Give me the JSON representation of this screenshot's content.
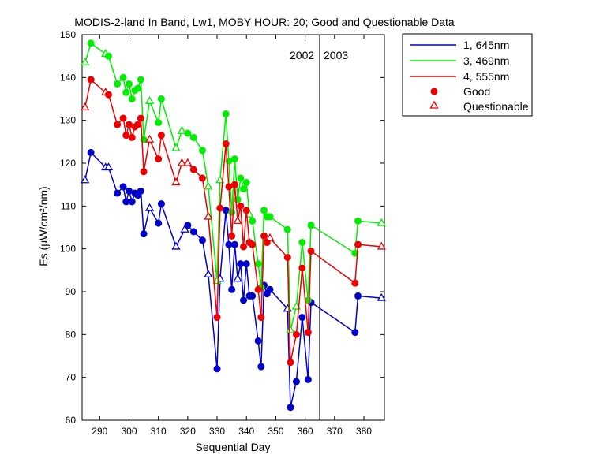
{
  "chart_data": {
    "type": "line",
    "title": "MODIS-2-land In Band,  Lw1, MOBY HOUR: 20;  Good and Questionable Data",
    "xlabel": "Sequential Day",
    "ylabel": "Es (µW/cm²/nm)",
    "xlim": [
      284,
      387
    ],
    "ylim": [
      60,
      150
    ],
    "xticks": [
      290,
      300,
      310,
      320,
      330,
      340,
      350,
      360,
      370,
      380
    ],
    "yticks": [
      60,
      70,
      80,
      90,
      100,
      110,
      120,
      130,
      140,
      150
    ],
    "grid": false,
    "legend_position": "top-right, outside plot",
    "year_divider": {
      "x": 365,
      "left_label": "2002",
      "right_label": "2003"
    },
    "legend": {
      "series_labels": [
        "1, 645nm",
        "3, 469nm",
        "4, 555nm"
      ],
      "good_label": "Good",
      "questionable_label": "Questionable"
    },
    "series": [
      {
        "name": "1, 645nm",
        "color": "#0000cc",
        "points": [
          [
            285,
            116.0,
            "q"
          ],
          [
            287,
            122.5,
            "g"
          ],
          [
            292,
            119.0,
            "q"
          ],
          [
            293,
            119.0,
            "q"
          ],
          [
            296,
            113.0,
            "g"
          ],
          [
            298,
            114.5,
            "g"
          ],
          [
            299,
            111.0,
            "g"
          ],
          [
            300,
            113.5,
            "g"
          ],
          [
            301,
            111.0,
            "g"
          ],
          [
            302,
            113.0,
            "g"
          ],
          [
            303,
            112.5,
            "g"
          ],
          [
            304,
            113.5,
            "g"
          ],
          [
            305,
            103.5,
            "g"
          ],
          [
            307,
            109.5,
            "q"
          ],
          [
            310,
            106.0,
            "g"
          ],
          [
            311,
            110.5,
            "g"
          ],
          [
            316,
            100.5,
            "q"
          ],
          [
            319,
            104.5,
            "q"
          ],
          [
            320,
            105.5,
            "g"
          ],
          [
            322,
            104.0,
            "g"
          ],
          [
            325,
            102.0,
            "g"
          ],
          [
            327,
            94.0,
            "q"
          ],
          [
            330,
            72.0,
            "g"
          ],
          [
            331,
            93.0,
            "q"
          ],
          [
            333,
            109.0,
            "g"
          ],
          [
            334,
            101.0,
            "g"
          ],
          [
            335,
            90.5,
            "g"
          ],
          [
            336,
            101.0,
            "g"
          ],
          [
            337,
            93.0,
            "q"
          ],
          [
            338,
            96.5,
            "g"
          ],
          [
            339,
            88.0,
            "g"
          ],
          [
            340,
            96.5,
            "g"
          ],
          [
            341,
            89.0,
            "g"
          ],
          [
            342,
            89.0,
            "g"
          ],
          [
            344,
            78.5,
            "g"
          ],
          [
            345,
            72.5,
            "g"
          ],
          [
            346,
            91.5,
            "g"
          ],
          [
            347,
            89.5,
            "g"
          ],
          [
            348,
            90.5,
            "g"
          ],
          [
            354,
            86.0,
            "q"
          ],
          [
            355,
            63.0,
            "g"
          ],
          [
            357,
            69.0,
            "g"
          ],
          [
            359,
            84.0,
            "g"
          ],
          [
            361,
            69.5,
            "g"
          ],
          [
            362,
            87.5,
            "g"
          ],
          [
            377,
            80.5,
            "g"
          ],
          [
            378,
            89.0,
            "g"
          ],
          [
            386,
            88.5,
            "q"
          ]
        ]
      },
      {
        "name": "3, 469nm",
        "color": "#00ee00",
        "points": [
          [
            285,
            143.5,
            "q"
          ],
          [
            287,
            148.0,
            "g"
          ],
          [
            292,
            145.5,
            "q"
          ],
          [
            293,
            145.0,
            "g"
          ],
          [
            296,
            138.5,
            "g"
          ],
          [
            298,
            140.0,
            "g"
          ],
          [
            299,
            136.5,
            "g"
          ],
          [
            300,
            138.5,
            "g"
          ],
          [
            301,
            135.0,
            "g"
          ],
          [
            302,
            137.0,
            "g"
          ],
          [
            303,
            137.5,
            "g"
          ],
          [
            304,
            139.5,
            "g"
          ],
          [
            305,
            125.5,
            "g"
          ],
          [
            307,
            134.5,
            "q"
          ],
          [
            310,
            129.5,
            "g"
          ],
          [
            311,
            135.0,
            "g"
          ],
          [
            316,
            123.5,
            "q"
          ],
          [
            318,
            127.5,
            "q"
          ],
          [
            320,
            127.0,
            "g"
          ],
          [
            322,
            126.0,
            "g"
          ],
          [
            325,
            123.0,
            "g"
          ],
          [
            327,
            114.5,
            "q"
          ],
          [
            330,
            92.5,
            "q"
          ],
          [
            331,
            116.0,
            "q"
          ],
          [
            333,
            131.5,
            "g"
          ],
          [
            334,
            120.5,
            "g"
          ],
          [
            335,
            108.5,
            "g"
          ],
          [
            336,
            121.0,
            "g"
          ],
          [
            337,
            111.5,
            "g"
          ],
          [
            338,
            116.5,
            "g"
          ],
          [
            339,
            114.0,
            "g"
          ],
          [
            340,
            115.5,
            "g"
          ],
          [
            341,
            108.0,
            "q"
          ],
          [
            342,
            106.5,
            "g"
          ],
          [
            344,
            96.5,
            "g"
          ],
          [
            345,
            91.0,
            "g"
          ],
          [
            346,
            109.0,
            "g"
          ],
          [
            347,
            107.5,
            "g"
          ],
          [
            348,
            107.5,
            "g"
          ],
          [
            354,
            104.5,
            "g"
          ],
          [
            355,
            81.0,
            "q"
          ],
          [
            357,
            86.5,
            "q"
          ],
          [
            359,
            101.5,
            "g"
          ],
          [
            361,
            88.0,
            "g"
          ],
          [
            362,
            105.5,
            "g"
          ],
          [
            377,
            99.0,
            "g"
          ],
          [
            378,
            106.5,
            "g"
          ],
          [
            386,
            106.0,
            "q"
          ]
        ]
      },
      {
        "name": "4, 555nm",
        "color": "#ee0000",
        "points": [
          [
            285,
            133.0,
            "q"
          ],
          [
            287,
            139.5,
            "g"
          ],
          [
            292,
            136.5,
            "q"
          ],
          [
            293,
            136.0,
            "g"
          ],
          [
            296,
            129.0,
            "g"
          ],
          [
            298,
            130.5,
            "g"
          ],
          [
            299,
            126.5,
            "g"
          ],
          [
            300,
            129.0,
            "g"
          ],
          [
            301,
            126.0,
            "g"
          ],
          [
            302,
            128.5,
            "g"
          ],
          [
            303,
            129.0,
            "g"
          ],
          [
            304,
            130.5,
            "g"
          ],
          [
            305,
            118.0,
            "g"
          ],
          [
            307,
            125.5,
            "q"
          ],
          [
            310,
            121.0,
            "g"
          ],
          [
            311,
            126.5,
            "g"
          ],
          [
            316,
            115.5,
            "q"
          ],
          [
            318,
            120.0,
            "q"
          ],
          [
            320,
            120.0,
            "q"
          ],
          [
            322,
            118.5,
            "g"
          ],
          [
            325,
            116.5,
            "g"
          ],
          [
            327,
            107.5,
            "q"
          ],
          [
            330,
            84.0,
            "g"
          ],
          [
            331,
            109.5,
            "g"
          ],
          [
            333,
            124.5,
            "g"
          ],
          [
            334,
            114.5,
            "g"
          ],
          [
            335,
            103.0,
            "g"
          ],
          [
            336,
            115.0,
            "g"
          ],
          [
            337,
            106.5,
            "q"
          ],
          [
            338,
            110.0,
            "g"
          ],
          [
            339,
            100.5,
            "g"
          ],
          [
            340,
            109.0,
            "g"
          ],
          [
            341,
            101.5,
            "g"
          ],
          [
            342,
            101.0,
            "g"
          ],
          [
            344,
            90.5,
            "g"
          ],
          [
            345,
            84.0,
            "g"
          ],
          [
            346,
            103.0,
            "g"
          ],
          [
            347,
            101.5,
            "g"
          ],
          [
            348,
            102.5,
            "q"
          ],
          [
            354,
            98.0,
            "g"
          ],
          [
            355,
            73.5,
            "g"
          ],
          [
            357,
            80.0,
            "g"
          ],
          [
            359,
            95.5,
            "g"
          ],
          [
            361,
            80.5,
            "g"
          ],
          [
            362,
            99.5,
            "g"
          ],
          [
            377,
            92.0,
            "g"
          ],
          [
            378,
            101.0,
            "g"
          ],
          [
            386,
            100.5,
            "q"
          ]
        ]
      }
    ]
  }
}
